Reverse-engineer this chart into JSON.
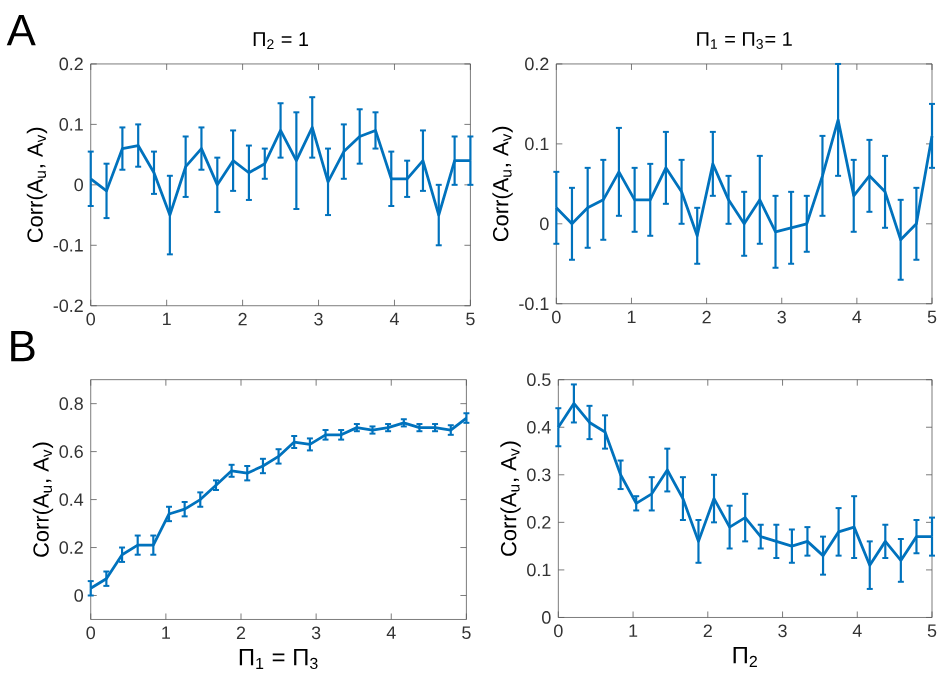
{
  "chart_data": [
    {
      "type": "line",
      "title": "Π$_{2}$ = 1",
      "ylabel": "Corr(A$_{u}$, A$_{v}$)",
      "annotations": [
        "A"
      ],
      "color": "#0072bd",
      "x": [
        0,
        0.208,
        0.417,
        0.625,
        0.833,
        1.042,
        1.25,
        1.458,
        1.667,
        1.875,
        2.083,
        2.292,
        2.5,
        2.708,
        2.917,
        3.125,
        3.333,
        3.542,
        3.75,
        3.958,
        4.167,
        4.375,
        4.583,
        4.792,
        5
      ],
      "values": [
        0.01,
        -0.01,
        0.06,
        0.065,
        0.02,
        -0.05,
        0.03,
        0.06,
        0.0,
        0.04,
        0.02,
        0.035,
        0.09,
        0.04,
        0.095,
        0.005,
        0.055,
        0.08,
        0.09,
        0.01,
        0.01,
        0.04,
        -0.05,
        0.04,
        0.04
      ],
      "errors": [
        0.045,
        0.045,
        0.035,
        0.035,
        0.035,
        0.065,
        0.05,
        0.035,
        0.045,
        0.05,
        0.045,
        0.025,
        0.045,
        0.08,
        0.05,
        0.055,
        0.045,
        0.045,
        0.03,
        0.045,
        0.03,
        0.05,
        0.05,
        0.04,
        0.04
      ],
      "xlim": [
        0,
        5
      ],
      "ylim": [
        -0.2,
        0.2
      ],
      "xticks": [
        0,
        1,
        2,
        3,
        4,
        5
      ],
      "yticks": [
        -0.2,
        -0.1,
        0,
        0.1,
        0.2
      ]
    },
    {
      "type": "line",
      "title": "Π$_{1}$ = Π$_{3}$= 1",
      "ylabel": "Corr(A$_{u}$, A$_{v}$)",
      "color": "#0072bd",
      "x": [
        0,
        0.208,
        0.417,
        0.625,
        0.833,
        1.042,
        1.25,
        1.458,
        1.667,
        1.875,
        2.083,
        2.292,
        2.5,
        2.708,
        2.917,
        3.125,
        3.333,
        3.542,
        3.75,
        3.958,
        4.167,
        4.375,
        4.583,
        4.792,
        5
      ],
      "values": [
        0.02,
        0.0,
        0.02,
        0.03,
        0.065,
        0.03,
        0.03,
        0.07,
        0.04,
        -0.015,
        0.075,
        0.03,
        0.0,
        0.03,
        -0.01,
        -0.005,
        0.0,
        0.06,
        0.13,
        0.035,
        0.06,
        0.04,
        -0.02,
        0.0,
        0.11
      ],
      "errors": [
        0.045,
        0.045,
        0.05,
        0.05,
        0.055,
        0.04,
        0.045,
        0.045,
        0.04,
        0.035,
        0.04,
        0.03,
        0.04,
        0.055,
        0.045,
        0.045,
        0.035,
        0.05,
        0.07,
        0.045,
        0.045,
        0.045,
        0.05,
        0.045,
        0.04
      ],
      "xlim": [
        0,
        5
      ],
      "ylim": [
        -0.1,
        0.2
      ],
      "xticks": [
        0,
        1,
        2,
        3,
        4,
        5
      ],
      "yticks": [
        -0.1,
        0,
        0.1,
        0.2
      ]
    },
    {
      "type": "line",
      "xlabel": "Π$_{1}$ = Π$_{3}$",
      "ylabel": "Corr(A$_{u}$, A$_{v}$)",
      "annotations": [
        "B"
      ],
      "color": "#0072bd",
      "x": [
        0,
        0.208,
        0.417,
        0.625,
        0.833,
        1.042,
        1.25,
        1.458,
        1.667,
        1.875,
        2.083,
        2.292,
        2.5,
        2.708,
        2.917,
        3.125,
        3.333,
        3.542,
        3.75,
        3.958,
        4.167,
        4.375,
        4.583,
        4.792,
        5
      ],
      "values": [
        0.03,
        0.07,
        0.17,
        0.21,
        0.21,
        0.34,
        0.36,
        0.4,
        0.46,
        0.52,
        0.51,
        0.54,
        0.58,
        0.64,
        0.63,
        0.67,
        0.67,
        0.7,
        0.69,
        0.7,
        0.72,
        0.7,
        0.7,
        0.69,
        0.74
      ],
      "errors": [
        0.03,
        0.03,
        0.03,
        0.04,
        0.04,
        0.03,
        0.03,
        0.03,
        0.02,
        0.025,
        0.03,
        0.03,
        0.03,
        0.025,
        0.025,
        0.02,
        0.02,
        0.015,
        0.015,
        0.015,
        0.015,
        0.015,
        0.015,
        0.02,
        0.02
      ],
      "xlim": [
        0,
        5
      ],
      "ylim": [
        -0.1,
        0.9
      ],
      "xticks": [
        0,
        1,
        2,
        3,
        4,
        5
      ],
      "yticks": [
        0,
        0.2,
        0.4,
        0.6,
        0.8
      ]
    },
    {
      "type": "line",
      "xlabel": "Π$_{2}$",
      "ylabel": "Corr(A$_{u}$, A$_{v}$)",
      "color": "#0072bd",
      "x": [
        0,
        0.208,
        0.417,
        0.625,
        0.833,
        1.042,
        1.25,
        1.458,
        1.667,
        1.875,
        2.083,
        2.292,
        2.5,
        2.708,
        2.917,
        3.125,
        3.333,
        3.542,
        3.75,
        3.958,
        4.167,
        4.375,
        4.583,
        4.792,
        5
      ],
      "values": [
        0.4,
        0.45,
        0.41,
        0.39,
        0.3,
        0.24,
        0.26,
        0.31,
        0.25,
        0.16,
        0.25,
        0.19,
        0.21,
        0.17,
        0.16,
        0.15,
        0.16,
        0.13,
        0.18,
        0.19,
        0.11,
        0.16,
        0.12,
        0.17,
        0.17
      ],
      "errors": [
        0.04,
        0.04,
        0.035,
        0.035,
        0.03,
        0.015,
        0.035,
        0.045,
        0.045,
        0.045,
        0.05,
        0.045,
        0.05,
        0.025,
        0.035,
        0.035,
        0.03,
        0.04,
        0.05,
        0.065,
        0.05,
        0.035,
        0.045,
        0.035,
        0.04
      ],
      "xlim": [
        0,
        5
      ],
      "ylim": [
        0,
        0.5
      ],
      "xticks": [
        0,
        1,
        2,
        3,
        4,
        5
      ],
      "yticks": [
        0,
        0.1,
        0.2,
        0.3,
        0.4,
        0.5
      ]
    }
  ]
}
